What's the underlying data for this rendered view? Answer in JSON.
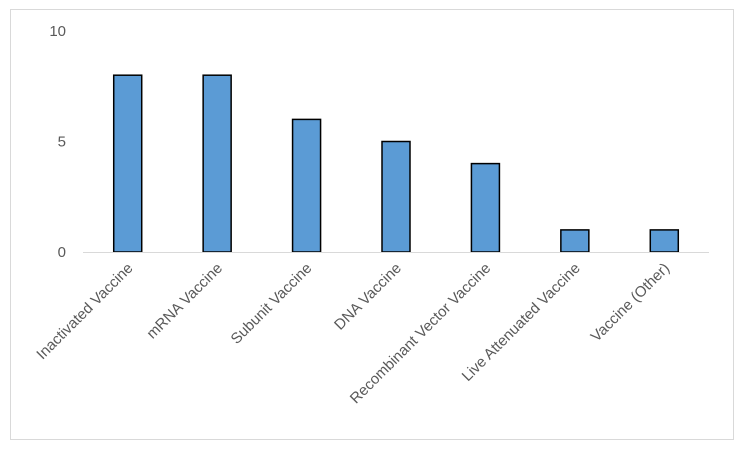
{
  "chart_data": {
    "type": "bar",
    "title": "",
    "xlabel": "",
    "ylabel": "",
    "categories": [
      "Inactivated Vaccine",
      "mRNA Vaccine",
      "Subunit Vaccine",
      "DNA Vaccine",
      "Recombinant Vector Vaccine",
      "Live Attenuated Vaccine",
      "Vaccine (Other)"
    ],
    "values": [
      8,
      8,
      6,
      5,
      4,
      1,
      1
    ],
    "ylim": [
      0,
      10
    ],
    "yticks": [
      0,
      5,
      10
    ],
    "grid": false,
    "legend": "none",
    "bar_color": "#5b9bd5",
    "bar_edge_color": "#000000"
  }
}
